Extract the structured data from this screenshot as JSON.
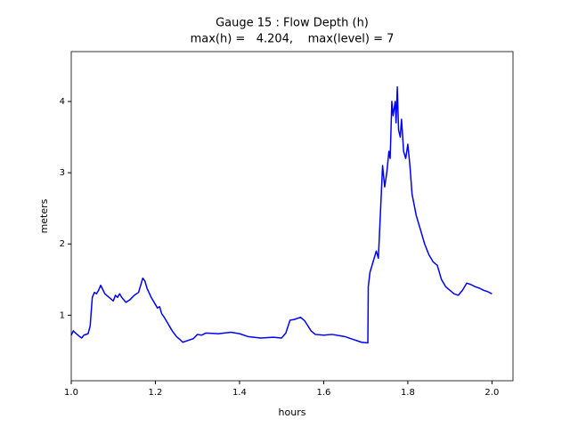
{
  "chart_data": {
    "type": "line",
    "title": [
      "Gauge 15 : Flow Depth (h)",
      "max(h) =   4.204,    max(level) = 7"
    ],
    "xlabel": "hours",
    "ylabel": "meters",
    "xlim": [
      1.0,
      2.05
    ],
    "ylim": [
      0.08,
      4.7
    ],
    "xticks": [
      {
        "value": 1.0,
        "label": "1.0"
      },
      1.2,
      1.4,
      1.6,
      1.8,
      {
        "value": 2.0,
        "label": "2.0"
      }
    ],
    "yticks": [
      1,
      2,
      3,
      4
    ],
    "series": [
      {
        "color": "#0000ff",
        "x": [
          1.0,
          1.005,
          1.01,
          1.02,
          1.025,
          1.03,
          1.04,
          1.045,
          1.05,
          1.055,
          1.06,
          1.065,
          1.07,
          1.075,
          1.08,
          1.09,
          1.1,
          1.105,
          1.11,
          1.115,
          1.12,
          1.13,
          1.14,
          1.15,
          1.16,
          1.165,
          1.17,
          1.175,
          1.18,
          1.19,
          1.2,
          1.205,
          1.21,
          1.215,
          1.22,
          1.23,
          1.24,
          1.25,
          1.26,
          1.265,
          1.28,
          1.29,
          1.3,
          1.31,
          1.32,
          1.35,
          1.38,
          1.4,
          1.42,
          1.45,
          1.48,
          1.5,
          1.51,
          1.52,
          1.53,
          1.545,
          1.555,
          1.57,
          1.58,
          1.6,
          1.62,
          1.65,
          1.67,
          1.69,
          1.705,
          1.706,
          1.71,
          1.715,
          1.72,
          1.725,
          1.73,
          1.735,
          1.74,
          1.745,
          1.75,
          1.755,
          1.758,
          1.762,
          1.765,
          1.77,
          1.772,
          1.775,
          1.778,
          1.782,
          1.785,
          1.79,
          1.795,
          1.8,
          1.805,
          1.81,
          1.82,
          1.83,
          1.84,
          1.85,
          1.86,
          1.87,
          1.88,
          1.89,
          1.9,
          1.91,
          1.92,
          1.93,
          1.94,
          1.95,
          1.96,
          1.97,
          1.98,
          1.99,
          2.0
        ],
        "values": [
          0.72,
          0.78,
          0.75,
          0.7,
          0.68,
          0.72,
          0.74,
          0.85,
          1.25,
          1.32,
          1.3,
          1.35,
          1.42,
          1.36,
          1.3,
          1.25,
          1.2,
          1.28,
          1.25,
          1.3,
          1.25,
          1.18,
          1.22,
          1.28,
          1.32,
          1.42,
          1.52,
          1.48,
          1.38,
          1.25,
          1.15,
          1.1,
          1.12,
          1.02,
          0.98,
          0.88,
          0.78,
          0.7,
          0.65,
          0.62,
          0.65,
          0.67,
          0.73,
          0.72,
          0.75,
          0.74,
          0.76,
          0.74,
          0.7,
          0.68,
          0.69,
          0.68,
          0.75,
          0.93,
          0.94,
          0.97,
          0.92,
          0.78,
          0.73,
          0.72,
          0.73,
          0.7,
          0.66,
          0.62,
          0.61,
          1.4,
          1.6,
          1.7,
          1.8,
          1.9,
          1.8,
          2.45,
          3.1,
          2.8,
          3.0,
          3.3,
          3.2,
          4.0,
          3.8,
          4.0,
          3.7,
          4.204,
          3.6,
          3.5,
          3.75,
          3.3,
          3.2,
          3.4,
          3.1,
          2.7,
          2.4,
          2.2,
          2.0,
          1.85,
          1.75,
          1.7,
          1.5,
          1.4,
          1.35,
          1.3,
          1.28,
          1.35,
          1.45,
          1.43,
          1.4,
          1.38,
          1.35,
          1.33,
          1.3
        ]
      }
    ]
  }
}
